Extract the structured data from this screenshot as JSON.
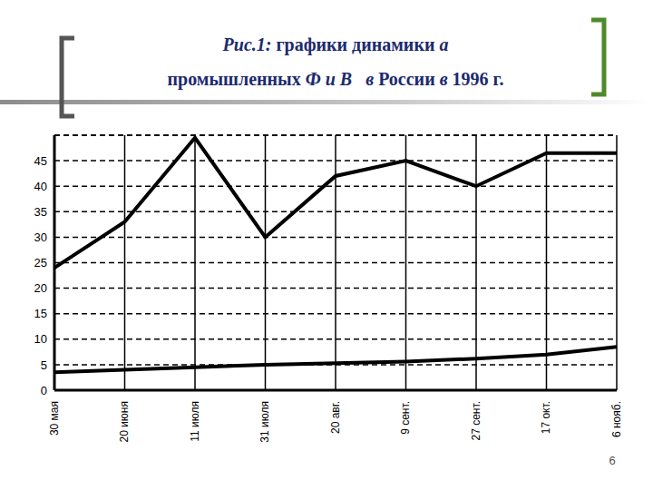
{
  "chart_data": {
    "type": "line",
    "title": [
      "Рис.1: графики динамики а",
      "промышленных Ф и В   в России в 1996 г."
    ],
    "categories": [
      "30 мая",
      "20 июня",
      "11 июля",
      "31 июля",
      "20 авг.",
      "9 сент.",
      "27 сент.",
      "17 окт.",
      "6 нояб."
    ],
    "series": [
      {
        "color": "#000000",
        "values": [
          24,
          33,
          49.5,
          30,
          42,
          45,
          40,
          46.5,
          46.5
        ]
      },
      {
        "color": "#000000",
        "values": [
          3.5,
          4,
          4.5,
          5,
          5.3,
          5.6,
          6.2,
          7,
          8.5
        ]
      }
    ],
    "ylim": [
      0,
      50
    ],
    "yticks": [
      0,
      5,
      10,
      15,
      20,
      25,
      30,
      35,
      40,
      45
    ],
    "grid": true
  },
  "page_number": "6"
}
